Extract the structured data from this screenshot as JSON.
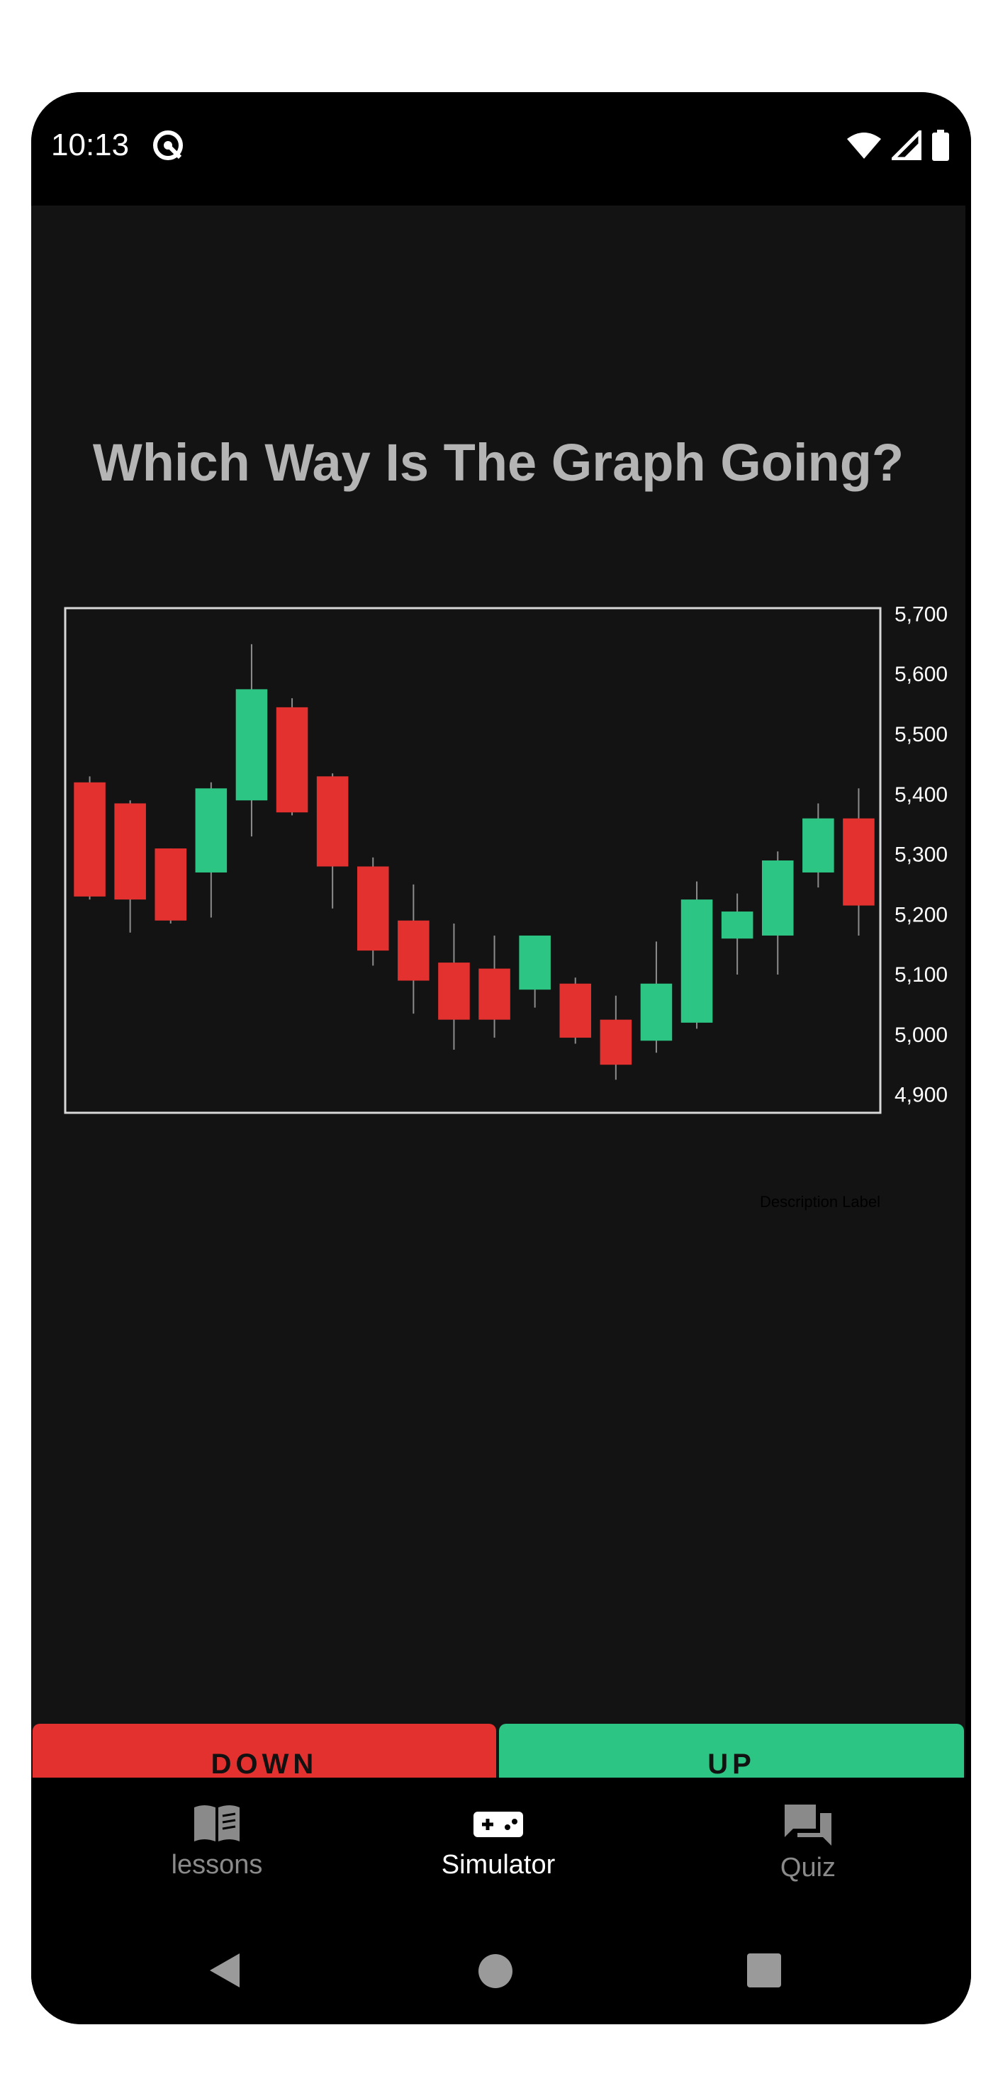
{
  "status_bar": {
    "time": "10:13"
  },
  "page": {
    "title": "Which Way Is The Graph Going?"
  },
  "colors": {
    "bullish": "#2dc584",
    "bearish": "#e3312f",
    "background": "#131313",
    "title": "#b4b4b4"
  },
  "chart_data": {
    "type": "candlestick",
    "y_ticks": [
      "5,700",
      "5,600",
      "5,500",
      "5,400",
      "5,300",
      "5,200",
      "5,100",
      "5,000",
      "4,900"
    ],
    "ylim": [
      4870,
      5710
    ],
    "description_label": "Description Label",
    "candles": [
      {
        "open": 5420,
        "high": 5430,
        "low": 5225,
        "close": 5230
      },
      {
        "open": 5385,
        "high": 5390,
        "low": 5170,
        "close": 5225
      },
      {
        "open": 5310,
        "high": 5310,
        "low": 5185,
        "close": 5190
      },
      {
        "open": 5270,
        "high": 5420,
        "low": 5195,
        "close": 5410
      },
      {
        "open": 5390,
        "high": 5650,
        "low": 5330,
        "close": 5575
      },
      {
        "open": 5545,
        "high": 5560,
        "low": 5365,
        "close": 5370
      },
      {
        "open": 5430,
        "high": 5435,
        "low": 5210,
        "close": 5280
      },
      {
        "open": 5280,
        "high": 5295,
        "low": 5115,
        "close": 5140
      },
      {
        "open": 5190,
        "high": 5250,
        "low": 5035,
        "close": 5090
      },
      {
        "open": 5120,
        "high": 5185,
        "low": 4975,
        "close": 5025
      },
      {
        "open": 5110,
        "high": 5165,
        "low": 4995,
        "close": 5025
      },
      {
        "open": 5075,
        "high": 5165,
        "low": 5045,
        "close": 5165
      },
      {
        "open": 5085,
        "high": 5095,
        "low": 4985,
        "close": 4995
      },
      {
        "open": 5025,
        "high": 5065,
        "low": 4925,
        "close": 4950
      },
      {
        "open": 4990,
        "high": 5155,
        "low": 4970,
        "close": 5085
      },
      {
        "open": 5020,
        "high": 5255,
        "low": 5010,
        "close": 5225
      },
      {
        "open": 5160,
        "high": 5235,
        "low": 5100,
        "close": 5205
      },
      {
        "open": 5165,
        "high": 5305,
        "low": 5100,
        "close": 5290
      },
      {
        "open": 5270,
        "high": 5385,
        "low": 5245,
        "close": 5360
      },
      {
        "open": 5360,
        "high": 5410,
        "low": 5165,
        "close": 5215
      }
    ]
  },
  "buttons": {
    "down": "DOWN",
    "up": "UP"
  },
  "bottom_nav": {
    "items": [
      {
        "label": "lessons",
        "icon": "book-open-icon",
        "active": false
      },
      {
        "label": "Simulator",
        "icon": "gamepad-icon",
        "active": true
      },
      {
        "label": "Quiz",
        "icon": "forum-icon",
        "active": false
      }
    ]
  },
  "system_nav": {
    "icons": [
      "back-icon",
      "home-icon",
      "recents-icon"
    ]
  }
}
